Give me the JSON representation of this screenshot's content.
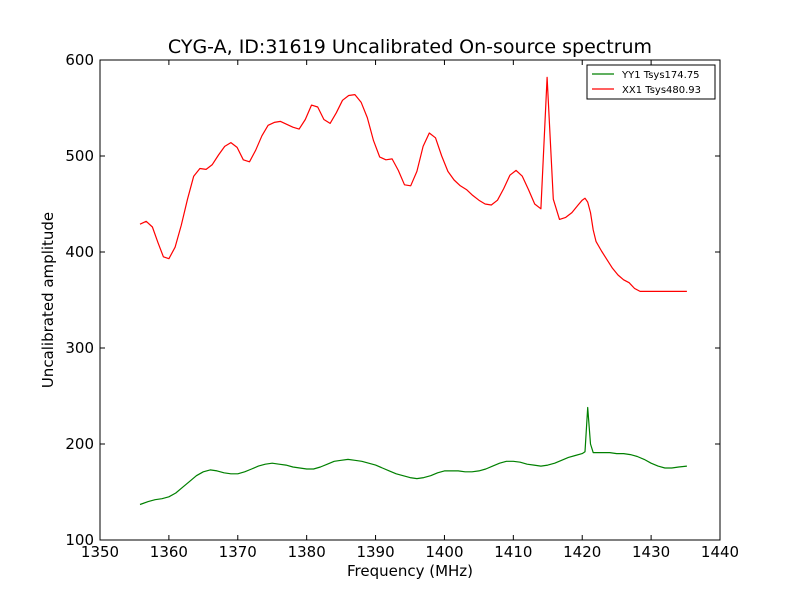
{
  "chart_data": {
    "type": "line",
    "title": "CYG-A, ID:31619 Uncalibrated On-source spectrum",
    "xlabel": "Frequency (MHz)",
    "ylabel": "Uncalibrated amplitude",
    "xlim": [
      1350,
      1440
    ],
    "ylim": [
      100,
      600
    ],
    "xticks": [
      1350,
      1360,
      1370,
      1380,
      1390,
      1400,
      1410,
      1420,
      1430,
      1440
    ],
    "yticks": [
      100,
      200,
      300,
      400,
      500,
      600
    ],
    "grid": false,
    "legend_position": "top-right",
    "series": [
      {
        "name": "YY1 Tsys174.75",
        "color": "#008000",
        "x": [
          1355.8,
          1357,
          1358,
          1359,
          1360,
          1361,
          1362,
          1363,
          1364,
          1365,
          1366,
          1367,
          1368,
          1369,
          1370,
          1371,
          1372,
          1373,
          1374,
          1375,
          1376,
          1377,
          1378,
          1379,
          1380,
          1381,
          1382,
          1383,
          1384,
          1385,
          1386,
          1387,
          1388,
          1389,
          1390,
          1391,
          1392,
          1393,
          1394,
          1395,
          1396,
          1397,
          1398,
          1399,
          1400,
          1401,
          1402,
          1403,
          1404,
          1405,
          1406,
          1407,
          1408,
          1409,
          1410,
          1411,
          1412,
          1413,
          1414,
          1415,
          1416,
          1417,
          1418,
          1419,
          1420,
          1420.4,
          1420.8,
          1421.2,
          1421.6,
          1422,
          1423,
          1424,
          1425,
          1426,
          1427,
          1428,
          1429,
          1430,
          1431,
          1432,
          1433,
          1434,
          1435.2
        ],
        "values": [
          137,
          140,
          142,
          143,
          145,
          149,
          155,
          161,
          167,
          171,
          173,
          172,
          170,
          169,
          169,
          171,
          174,
          177,
          179,
          180,
          179,
          178,
          176,
          175,
          174,
          174,
          176,
          179,
          182,
          183,
          184,
          183,
          182,
          180,
          178,
          175,
          172,
          169,
          167,
          165,
          164,
          165,
          167,
          170,
          172,
          172,
          172,
          171,
          171,
          172,
          174,
          177,
          180,
          182,
          182,
          181,
          179,
          178,
          177,
          178,
          180,
          183,
          186,
          188,
          190,
          192,
          238,
          200,
          191,
          191,
          191,
          191,
          190,
          190,
          189,
          187,
          184,
          180,
          177,
          175,
          175,
          176,
          177
        ]
      },
      {
        "name": "XX1 Tsys480.93",
        "color": "#ff0000",
        "x": [
          1355.8,
          1356.7,
          1357.6,
          1358.4,
          1359.2,
          1360,
          1360.9,
          1361.8,
          1362.7,
          1363.6,
          1364.5,
          1365.4,
          1366.3,
          1367.2,
          1368.1,
          1369,
          1369.9,
          1370.8,
          1371.7,
          1372.6,
          1373.5,
          1374.4,
          1375.3,
          1376.2,
          1377.1,
          1378,
          1378.9,
          1379.8,
          1380.7,
          1381.6,
          1382.5,
          1383.4,
          1384.3,
          1385.2,
          1386.1,
          1387,
          1387.9,
          1388.8,
          1389.7,
          1390.6,
          1391.5,
          1392.4,
          1393.3,
          1394.2,
          1395.1,
          1396,
          1396.9,
          1397.8,
          1398.7,
          1399.6,
          1400.5,
          1401.4,
          1402.3,
          1403.2,
          1404.1,
          1405,
          1405.9,
          1406.8,
          1407.7,
          1408.6,
          1409.5,
          1410.4,
          1411.3,
          1412.2,
          1413.1,
          1414,
          1414.9,
          1415.8,
          1416.7,
          1417.6,
          1418.5,
          1419.4,
          1420,
          1420.4,
          1420.8,
          1421.2,
          1421.6,
          1422,
          1422.8,
          1423.6,
          1424.4,
          1425.2,
          1426,
          1426.8,
          1427.6,
          1428.4,
          1429.2,
          1430,
          1430.8,
          1431.6,
          1432.4,
          1433.2,
          1434,
          1434.8,
          1435.2
        ],
        "values": [
          429,
          432,
          426,
          410,
          395,
          393,
          405,
          428,
          455,
          479,
          487,
          486,
          491,
          501,
          510,
          514,
          509,
          496,
          494,
          506,
          521,
          532,
          535,
          536,
          533,
          530,
          528,
          538,
          553,
          551,
          538,
          534,
          545,
          558,
          563,
          564,
          556,
          540,
          516,
          499,
          496,
          497,
          485,
          470,
          469,
          484,
          510,
          524,
          519,
          500,
          484,
          475,
          469,
          465,
          459,
          454,
          450,
          449,
          454,
          466,
          480,
          485,
          479,
          465,
          450,
          445,
          582,
          455,
          434,
          436,
          441,
          449,
          454,
          456,
          452,
          441,
          423,
          411,
          401,
          392,
          383,
          376,
          371,
          368,
          362,
          359,
          359,
          359,
          359,
          359,
          359,
          359,
          359,
          359,
          359
        ]
      }
    ]
  }
}
